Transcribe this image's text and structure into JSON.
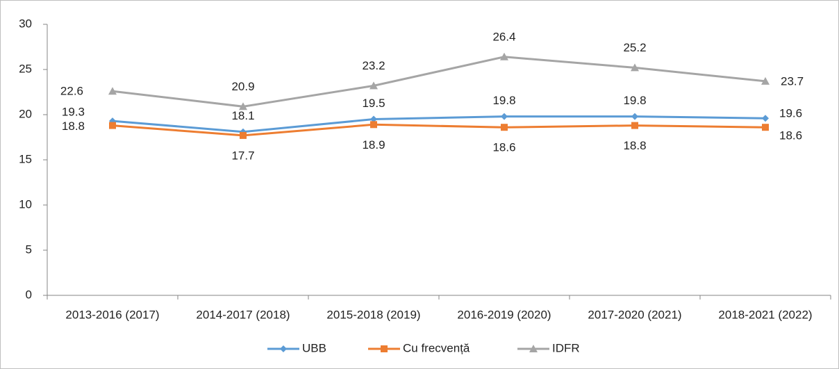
{
  "chart_data": {
    "type": "line",
    "categories": [
      "2013-2016 (2017)",
      "2014-2017 (2018)",
      "2015-2018 (2019)",
      "2016-2019 (2020)",
      "2017-2020 (2021)",
      "2018-2021 (2022)"
    ],
    "series": [
      {
        "name": "UBB",
        "color": "#5b9bd5",
        "marker": "diamond",
        "values": [
          19.3,
          18.1,
          19.5,
          19.8,
          19.8,
          19.6
        ]
      },
      {
        "name": "Cu frecvență",
        "color": "#ed7d31",
        "marker": "square",
        "values": [
          18.8,
          17.7,
          18.9,
          18.6,
          18.8,
          18.6
        ]
      },
      {
        "name": "IDFR",
        "color": "#a5a5a5",
        "marker": "triangle",
        "values": [
          22.6,
          20.9,
          23.2,
          26.4,
          25.2,
          23.7
        ]
      }
    ],
    "ylim": [
      0,
      30
    ],
    "yticks": [
      0,
      5,
      10,
      15,
      20,
      25,
      30
    ],
    "grid": false,
    "legend": "bottom"
  }
}
